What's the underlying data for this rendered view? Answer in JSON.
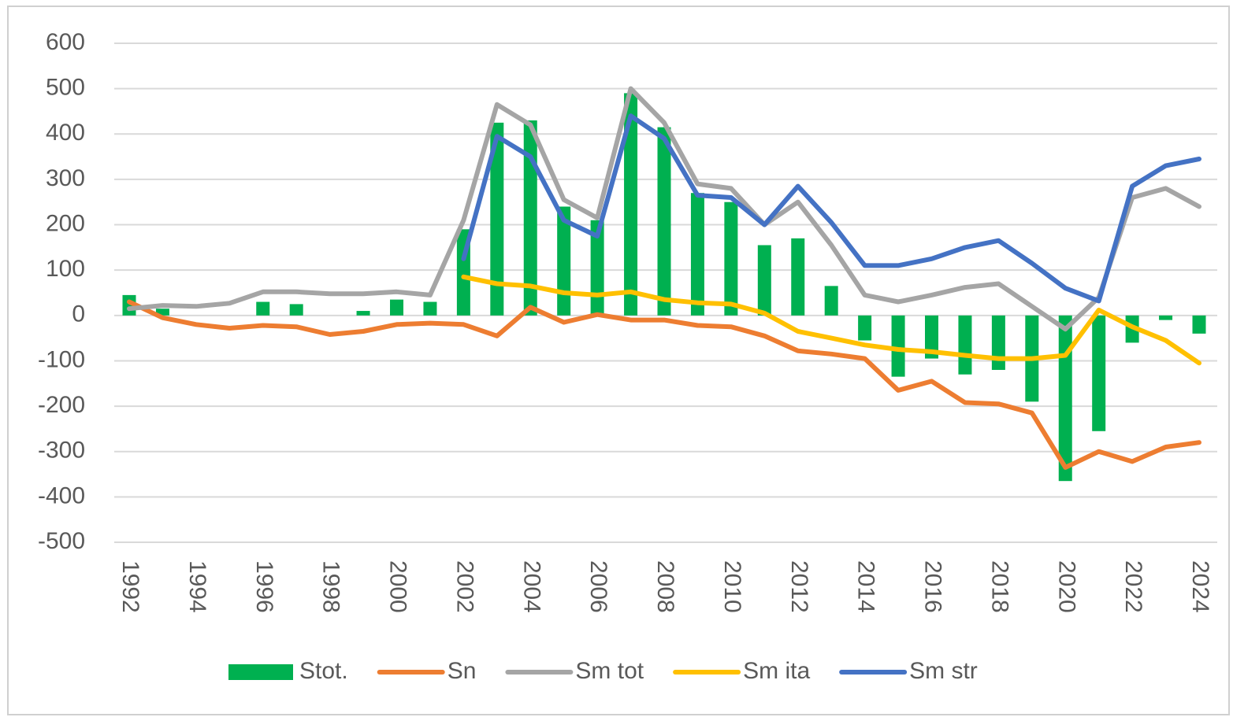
{
  "chart_data": {
    "type": "bar",
    "categories": [
      "1992",
      null,
      "1994",
      null,
      "1996",
      null,
      "1998",
      null,
      "2000",
      null,
      "2002",
      null,
      "2004",
      null,
      "2006",
      null,
      "2008",
      null,
      "2010",
      null,
      "2012",
      null,
      "2014",
      null,
      "2016",
      null,
      "2018",
      null,
      "2020",
      null,
      "2022",
      null,
      "2024"
    ],
    "ylim": [
      -500,
      600
    ],
    "yticks": [
      -500,
      -400,
      -300,
      -200,
      -100,
      0,
      100,
      200,
      300,
      400,
      500,
      600
    ],
    "grid": true,
    "legend": "bottom",
    "series": [
      {
        "name": "Stot.",
        "type": "bar",
        "color": "#00b050",
        "values": [
          45,
          15,
          0,
          0,
          30,
          25,
          0,
          10,
          35,
          30,
          190,
          425,
          430,
          240,
          210,
          490,
          415,
          270,
          250,
          155,
          170,
          65,
          -55,
          -135,
          -95,
          -130,
          -120,
          -190,
          -365,
          -255,
          -60,
          -10,
          -40
        ]
      },
      {
        "name": "Sn",
        "type": "line",
        "color": "#ed7d31",
        "values": [
          30,
          -5,
          -20,
          -28,
          -22,
          -25,
          -42,
          -35,
          -20,
          -17,
          -20,
          -45,
          18,
          -15,
          2,
          -10,
          -10,
          -22,
          -25,
          -45,
          -78,
          -85,
          -95,
          -165,
          -145,
          -192,
          -195,
          -215,
          -335,
          -300,
          -322,
          -290,
          -280
        ]
      },
      {
        "name": "Sm tot",
        "type": "line",
        "color": "#a5a5a5",
        "values": [
          15,
          22,
          20,
          27,
          52,
          52,
          48,
          48,
          52,
          45,
          210,
          465,
          420,
          255,
          215,
          500,
          425,
          290,
          280,
          200,
          250,
          155,
          45,
          30,
          45,
          62,
          70,
          20,
          -30,
          40,
          260,
          280,
          240
        ]
      },
      {
        "name": "Sm ita",
        "type": "line",
        "color": "#ffc000",
        "values": [
          null,
          null,
          null,
          null,
          null,
          null,
          null,
          null,
          null,
          null,
          85,
          70,
          65,
          50,
          45,
          52,
          35,
          28,
          25,
          5,
          -35,
          -50,
          -65,
          -75,
          -80,
          -88,
          -95,
          -95,
          -88,
          12,
          -25,
          -55,
          -105
        ]
      },
      {
        "name": "Sm str",
        "type": "line",
        "color": "#4472c4",
        "values": [
          null,
          null,
          null,
          null,
          null,
          null,
          null,
          null,
          null,
          null,
          125,
          395,
          350,
          210,
          175,
          440,
          390,
          265,
          260,
          200,
          285,
          205,
          110,
          110,
          125,
          150,
          165,
          115,
          60,
          32,
          285,
          330,
          345
        ]
      }
    ]
  }
}
